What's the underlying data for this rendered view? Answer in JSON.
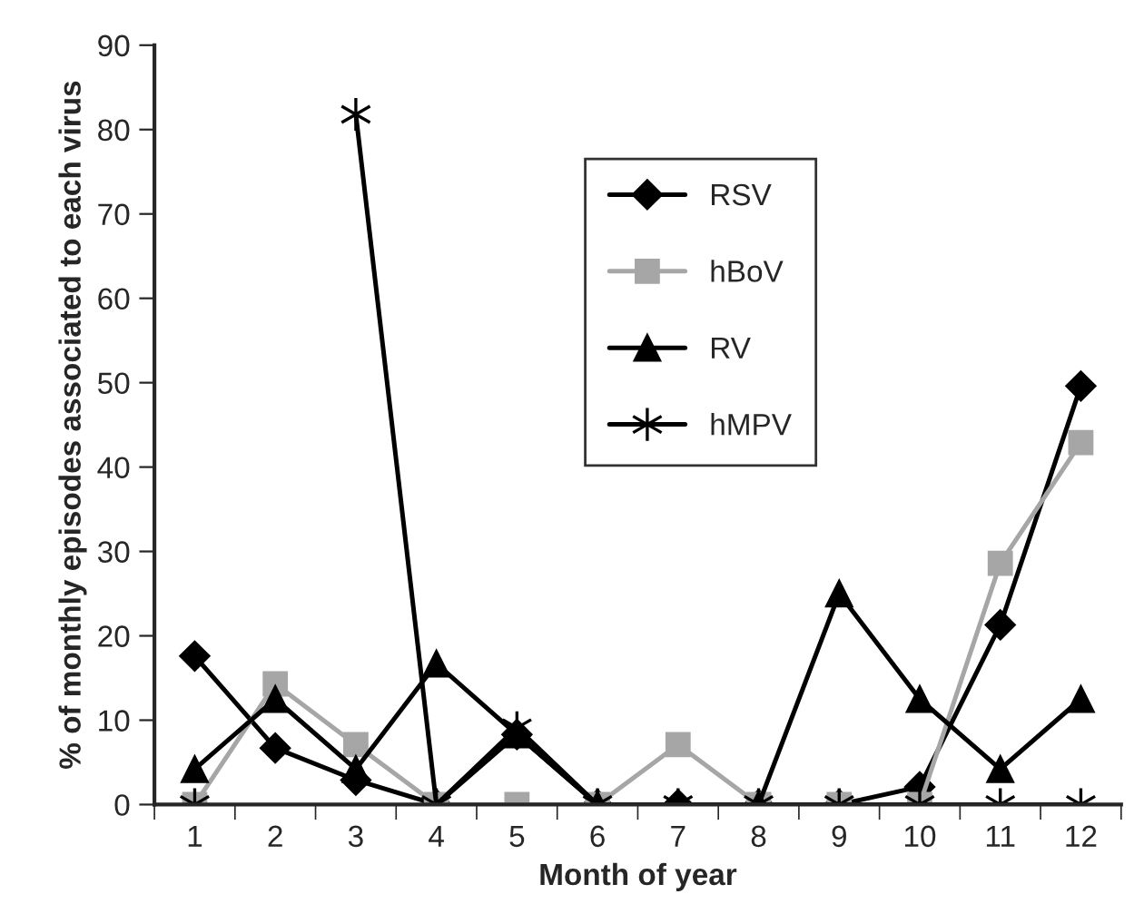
{
  "chart_data": {
    "type": "line",
    "xlabel": "Month of year",
    "ylabel": "% of monthly episodes associated to each virus",
    "categories": [
      "1",
      "2",
      "3",
      "4",
      "5",
      "6",
      "7",
      "8",
      "9",
      "10",
      "11",
      "12"
    ],
    "series": [
      {
        "name": "RSV",
        "color": "#000000",
        "marker": "diamond",
        "values": [
          17.6,
          6.7,
          2.9,
          0,
          8.3,
          0,
          0,
          0,
          0,
          2.1,
          21.3,
          49.6
        ]
      },
      {
        "name": "hBoV",
        "color": "#a6a6a6",
        "marker": "square",
        "values": [
          0,
          14.3,
          7.1,
          0,
          0,
          0,
          7.1,
          0,
          0,
          0,
          28.6,
          42.9
        ]
      },
      {
        "name": "RV",
        "color": "#000000",
        "marker": "triangle",
        "values": [
          4.2,
          12.5,
          4.2,
          16.7,
          8.3,
          0,
          0,
          0,
          25,
          12.5,
          4.2,
          12.5
        ]
      },
      {
        "name": "hMPV",
        "color": "#000000",
        "marker": "cross",
        "values": [
          0,
          null,
          81.8,
          0,
          9.1,
          0,
          0,
          0,
          0,
          0,
          0,
          0
        ]
      }
    ],
    "ylim": [
      0,
      90
    ],
    "yticks": [
      0,
      10,
      20,
      30,
      40,
      50,
      60,
      70,
      80,
      90
    ],
    "grid": false,
    "legend": "top right",
    "line_style": "solid"
  }
}
